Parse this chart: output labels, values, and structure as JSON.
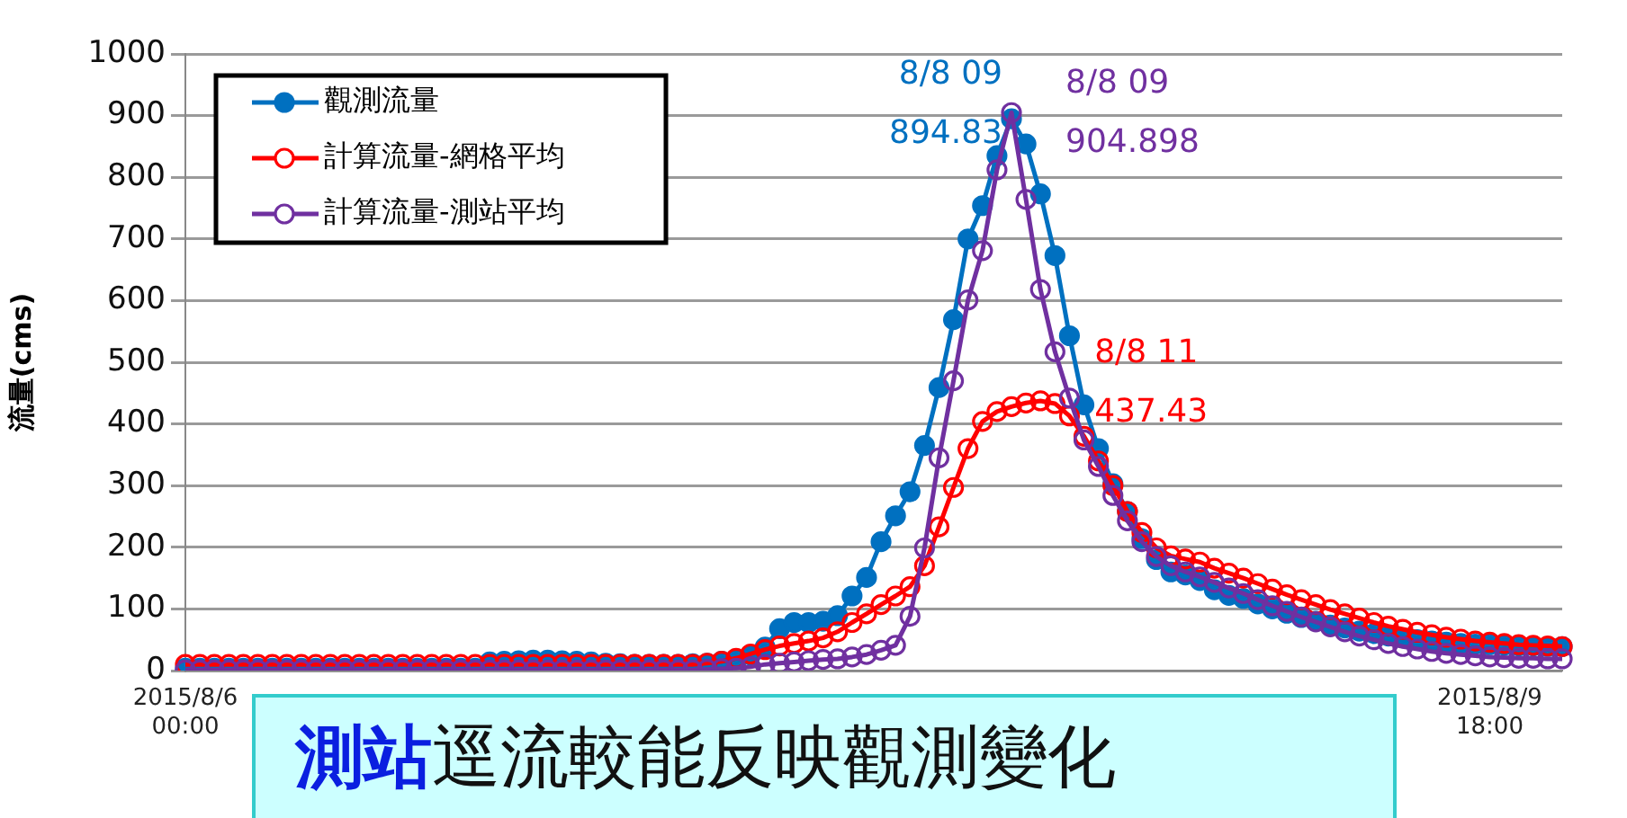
{
  "chart_data": {
    "type": "line",
    "ylabel": "流量(cms)",
    "categories": [
      "2015/8/6 00:00",
      null,
      null,
      null,
      null,
      null,
      null,
      null,
      null,
      null,
      null,
      null,
      null,
      null,
      null,
      null,
      null,
      null,
      null,
      null,
      null,
      null,
      null,
      null,
      null,
      null,
      null,
      null,
      null,
      null,
      null,
      null,
      null,
      null,
      null,
      null,
      null,
      null,
      null,
      null,
      null,
      null,
      null,
      null,
      null,
      null,
      null,
      null,
      null,
      null,
      null,
      null,
      null,
      null,
      null,
      null,
      null,
      null,
      null,
      null,
      null,
      null,
      null,
      null,
      null,
      null,
      null,
      null,
      null,
      null,
      null,
      null,
      null,
      null,
      null,
      null,
      null,
      null,
      null,
      null,
      null,
      null,
      null,
      null,
      null,
      null,
      null,
      null,
      null,
      null,
      "2015/8/9 18:00",
      null,
      null,
      null,
      null,
      null
    ],
    "series": [
      {
        "name": "觀測流量",
        "color": "#0070c0",
        "values": [
          4,
          4,
          4,
          4,
          4,
          4,
          4,
          4,
          4,
          4,
          4,
          4,
          4,
          4,
          4,
          4,
          4,
          4,
          4,
          4,
          4,
          14,
          15,
          16,
          17,
          17,
          16,
          15,
          14,
          12,
          11,
          10,
          10,
          10,
          10,
          11,
          12,
          15,
          18,
          25,
          38,
          68,
          78,
          78,
          80,
          89,
          121,
          151,
          209,
          251,
          290,
          365,
          459,
          569,
          700,
          754,
          835,
          894.83,
          854,
          773,
          673,
          543,
          431,
          360,
          303,
          258,
          214,
          180,
          160,
          155,
          146,
          131,
          122,
          117,
          108,
          100,
          93,
          86,
          80,
          74,
          69,
          64,
          60,
          56,
          53,
          50,
          48,
          46,
          44,
          43,
          42,
          41,
          40,
          40,
          39,
          39
        ]
      },
      {
        "name": "計算流量-網格平均",
        "color": "#ff0000",
        "values": [
          10,
          10,
          10,
          10,
          10,
          10,
          10,
          10,
          10,
          10,
          10,
          10,
          10,
          10,
          10,
          10,
          10,
          10,
          10,
          10,
          10,
          10,
          10,
          10,
          10,
          10,
          10,
          10,
          10,
          10,
          10,
          10,
          10,
          10,
          10,
          10,
          12,
          15,
          20,
          27,
          34,
          40,
          44,
          48,
          53,
          63,
          78,
          92,
          107,
          121,
          136,
          170,
          233,
          297,
          360,
          404,
          420,
          428,
          434,
          437.43,
          433,
          413,
          380,
          340,
          300,
          258,
          224,
          199,
          186,
          181,
          176,
          166,
          158,
          150,
          141,
          132,
          123,
          115,
          107,
          99,
          92,
          85,
          78,
          72,
          67,
          62,
          58,
          54,
          51,
          48,
          46,
          44,
          42,
          41,
          40,
          39
        ]
      },
      {
        "name": "計算流量-測站平均",
        "color": "#7030a0",
        "values": [
          1,
          1,
          1,
          1,
          1,
          1,
          1,
          1,
          1,
          1,
          1,
          1,
          1,
          1,
          1,
          1,
          1,
          1,
          1,
          1,
          1,
          1,
          1,
          1,
          1,
          1,
          1,
          1,
          1,
          1,
          1,
          1,
          1,
          1,
          1,
          1,
          2,
          3,
          4,
          6,
          10,
          12,
          14,
          16,
          18,
          19,
          22,
          26,
          33,
          41,
          88,
          199,
          345,
          470,
          601,
          681,
          812,
          904.898,
          764,
          618,
          517,
          442,
          374,
          331,
          284,
          243,
          209,
          185,
          170,
          160,
          152,
          143,
          134,
          125,
          115,
          105,
          96,
          87,
          79,
          71,
          63,
          56,
          50,
          44,
          39,
          35,
          31,
          28,
          26,
          24,
          22,
          21,
          20,
          20,
          19,
          19
        ]
      }
    ],
    "ylim": [
      0,
      1000
    ],
    "yticks": [
      0,
      100,
      200,
      300,
      400,
      500,
      600,
      700,
      800,
      900,
      1000
    ],
    "grid": "y",
    "legend": "top left",
    "marker": "circle",
    "line_style": "solid",
    "annotations": [
      "8/8 09\n894.83",
      "8/8 09\n904.898",
      "8/8 11\n437.43",
      "測站逕流較能反映觀測變化"
    ]
  }
}
